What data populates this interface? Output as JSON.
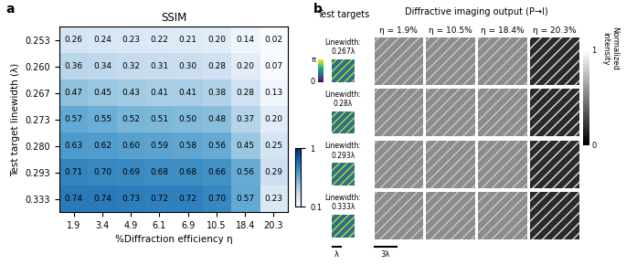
{
  "chart_data": {
    "type": "heatmap",
    "panel_label": "a",
    "title": "SSIM",
    "x_label": "%Diffraction efficiency η",
    "y_label": "Test target linewidth (λ)",
    "x_categories": [
      "1.9",
      "3.4",
      "4.9",
      "6.1",
      "6.9",
      "10.5",
      "18.4",
      "20.3"
    ],
    "y_categories": [
      "0.253",
      "0.260",
      "0.267",
      "0.273",
      "0.280",
      "0.293",
      "0.333"
    ],
    "cells": [
      [
        0.26,
        0.24,
        0.23,
        0.22,
        0.21,
        0.2,
        0.14,
        0.02
      ],
      [
        0.36,
        0.34,
        0.32,
        0.31,
        0.3,
        0.28,
        0.2,
        0.07
      ],
      [
        0.47,
        0.45,
        0.43,
        0.41,
        0.41,
        0.38,
        0.28,
        0.13
      ],
      [
        0.57,
        0.55,
        0.52,
        0.51,
        0.5,
        0.48,
        0.37,
        0.2
      ],
      [
        0.63,
        0.62,
        0.6,
        0.59,
        0.58,
        0.56,
        0.45,
        0.25
      ],
      [
        0.71,
        0.7,
        0.69,
        0.68,
        0.68,
        0.66,
        0.56,
        0.29
      ],
      [
        0.74,
        0.74,
        0.73,
        0.72,
        0.72,
        0.7,
        0.57,
        0.23
      ]
    ],
    "value_labels": [
      [
        "0.26",
        "0.24",
        "0.23",
        "0.22",
        "0.21",
        "0.20",
        "0.14",
        "0.02"
      ],
      [
        "0.36",
        "0.34",
        "0.32",
        "0.31",
        "0.30",
        "0.28",
        "0.20",
        "0.07"
      ],
      [
        "0.47",
        "0.45",
        "0.43",
        "0.41",
        "0.41",
        "0.38",
        "0.28",
        "0.13"
      ],
      [
        "0.57",
        "0.55",
        "0.52",
        "0.51",
        "0.50",
        "0.48",
        "0.37",
        "0.20"
      ],
      [
        "0.63",
        "0.62",
        "0.60",
        "0.59",
        "0.58",
        "0.56",
        "0.45",
        "0.25"
      ],
      [
        "0.71",
        "0.70",
        "0.69",
        "0.68",
        "0.68",
        "0.66",
        "0.56",
        "0.29"
      ],
      [
        "0.74",
        "0.74",
        "0.73",
        "0.72",
        "0.72",
        "0.70",
        "0.57",
        "0.23"
      ]
    ],
    "data_labels": true,
    "colorbar_range": [
      0.1,
      1
    ],
    "colorbar_ticks": [
      0.1,
      1
    ]
  },
  "panel_b": {
    "label": "b",
    "column_header": "Test targets",
    "title": "Diffractive imaging output (P→I)",
    "columns": [
      "η = 1.9%",
      "η = 10.5%",
      "η = 18.4%",
      "η = 20.3%"
    ],
    "rows": [
      "Linewidth:\n0.267λ",
      "Linewidth:\n0.28λ",
      "Linewidth:\n0.293λ",
      "Linewidth:\n0.333λ"
    ],
    "phase_colorbar": {
      "top": "π",
      "bottom": "0"
    },
    "intensity_colorbar": {
      "title": "Normalized\nintensity",
      "top": "1",
      "bottom": "0"
    },
    "scale_bars": {
      "target": "λ",
      "output": "3λ"
    }
  }
}
